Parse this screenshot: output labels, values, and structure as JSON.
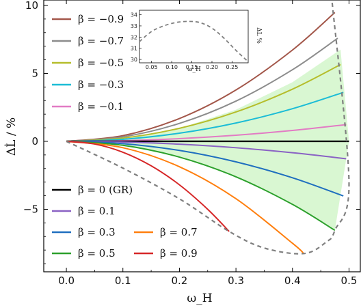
{
  "chart_data": {
    "type": "line",
    "xlabel": "ω_H",
    "ylabel": "ΔL̇ / %",
    "xlim": [
      -0.04,
      0.52
    ],
    "ylim": [
      -9.6,
      10.4
    ],
    "x_ticks": [
      "0.0",
      "0.1",
      "0.2",
      "0.3",
      "0.4",
      "0.5"
    ],
    "y_ticks": [
      "-5",
      "0",
      "5",
      "10"
    ],
    "series": [
      {
        "name": "β = −0.9",
        "color": "#a3574a",
        "x": [
          0,
          0.1,
          0.2,
          0.3,
          0.4,
          0.475
        ],
        "y": [
          0,
          0.42,
          1.68,
          3.78,
          6.72,
          9.48
        ]
      },
      {
        "name": "β = −0.7",
        "color": "#8c8c8c",
        "x": [
          0,
          0.1,
          0.2,
          0.3,
          0.4,
          0.48
        ],
        "y": [
          0,
          0.33,
          1.32,
          2.96,
          5.27,
          7.59
        ]
      },
      {
        "name": "β = −0.5",
        "color": "#b5bd2b",
        "x": [
          0,
          0.1,
          0.2,
          0.3,
          0.4,
          0.485
        ],
        "y": [
          0,
          0.24,
          0.96,
          2.16,
          3.84,
          5.65
        ]
      },
      {
        "name": "β = −0.3",
        "color": "#1bbcd6",
        "x": [
          0,
          0.1,
          0.2,
          0.3,
          0.4,
          0.49
        ],
        "y": [
          0,
          0.15,
          0.6,
          1.35,
          2.4,
          3.6
        ]
      },
      {
        "name": "β = −0.1",
        "color": "#e27bc4",
        "x": [
          0,
          0.1,
          0.2,
          0.3,
          0.4,
          0.495
        ],
        "y": [
          0,
          0.05,
          0.2,
          0.45,
          0.8,
          1.23
        ]
      },
      {
        "name": "β = 0 (GR)",
        "color": "#000000",
        "x": [
          0,
          0.5
        ],
        "y": [
          0,
          0
        ]
      },
      {
        "name": "β = 0.1",
        "color": "#8a62c4",
        "x": [
          0,
          0.1,
          0.2,
          0.3,
          0.4,
          0.495
        ],
        "y": [
          0,
          -0.05,
          -0.21,
          -0.47,
          -0.84,
          -1.28
        ]
      },
      {
        "name": "β = 0.3",
        "color": "#1f6fbf",
        "x": [
          0,
          0.1,
          0.2,
          0.3,
          0.4,
          0.49
        ],
        "y": [
          0,
          -0.17,
          -0.67,
          -1.51,
          -2.68,
          -4.02
        ]
      },
      {
        "name": "β = 0.5",
        "color": "#2ca02c",
        "x": [
          0,
          0.1,
          0.2,
          0.3,
          0.4,
          0.475
        ],
        "y": [
          0,
          -0.29,
          -1.16,
          -2.61,
          -4.64,
          -6.55
        ]
      },
      {
        "name": "β = 0.7",
        "color": "#ff7f0e",
        "x": [
          0,
          0.1,
          0.2,
          0.3,
          0.4,
          0.42
        ],
        "y": [
          0,
          -0.47,
          -1.87,
          -4.22,
          -7.5,
          -8.26
        ]
      },
      {
        "name": "β = 0.9",
        "color": "#d62728",
        "x": [
          0,
          0.05,
          0.1,
          0.15,
          0.2,
          0.25,
          0.288
        ],
        "y": [
          0,
          -0.2,
          -0.8,
          -1.8,
          -3.2,
          -5.0,
          -6.63
        ]
      }
    ],
    "boundary": {
      "style": "dashed",
      "color": "#7f7f7f",
      "upper": {
        "x": [
          0.475,
          0.48,
          0.485,
          0.49,
          0.495,
          0.5
        ],
        "y": [
          9.48,
          7.59,
          5.65,
          3.6,
          1.23,
          -1.0
        ]
      },
      "lower": {
        "x": [
          0,
          0.1,
          0.2,
          0.288,
          0.35,
          0.42,
          0.46,
          0.475,
          0.5,
          0.47
        ],
        "y": [
          0,
          -1.97,
          -4.23,
          -6.63,
          -7.85,
          -8.26,
          -7.4,
          -6.55,
          -3.0,
          10.3
        ]
      }
    },
    "shaded_region": {
      "color": "#d9f7d2",
      "upper": {
        "x": [
          0.1,
          0.2,
          0.3,
          0.4,
          0.485
        ],
        "y": [
          0.17,
          0.95,
          2.33,
          4.35,
          6.75
        ]
      },
      "lower": {
        "x": [
          0.1,
          0.2,
          0.3,
          0.4,
          0.475
        ],
        "y": [
          -0.29,
          -1.16,
          -2.61,
          -4.64,
          -6.55
        ]
      }
    },
    "inset": {
      "xlabel": "ω_H",
      "ylabel": "ΔL %",
      "xlim": [
        0.02,
        0.29
      ],
      "ylim": [
        29.7,
        34.4
      ],
      "x_ticks": [
        "0.05",
        "0.10",
        "0.15",
        "0.20",
        "0.25"
      ],
      "y_ticks": [
        "30",
        "31",
        "32",
        "33",
        "34"
      ],
      "curve": {
        "x": [
          0.02,
          0.05,
          0.08,
          0.11,
          0.14,
          0.17,
          0.2,
          0.23,
          0.26,
          0.29
        ],
        "y": [
          31.6,
          32.5,
          33.0,
          33.3,
          33.4,
          33.3,
          32.8,
          31.9,
          30.8,
          29.8
        ]
      }
    },
    "legend": {
      "positions": [
        "top-left",
        "bottom-left"
      ]
    }
  }
}
